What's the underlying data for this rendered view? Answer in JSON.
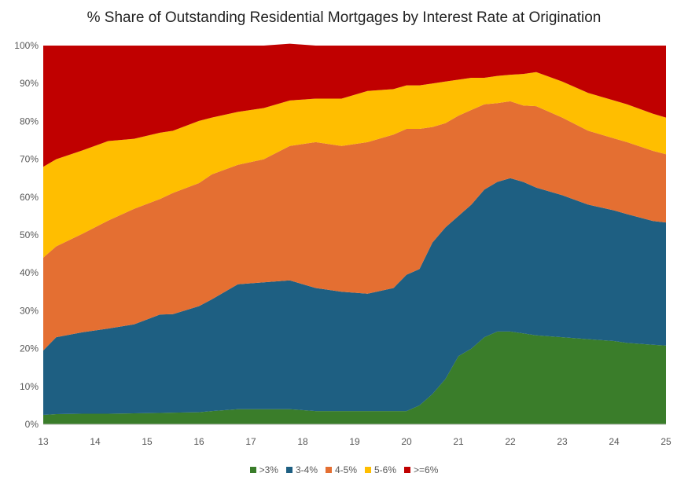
{
  "chart_data": {
    "type": "area",
    "stacked": true,
    "title": "% Share of Outstanding Residential Mortgages by Interest Rate at Origination",
    "xlabel": "",
    "ylabel": "",
    "xlim": [
      13,
      25
    ],
    "ylim": [
      0,
      100
    ],
    "x_ticks": [
      "13",
      "14",
      "15",
      "16",
      "17",
      "18",
      "19",
      "20",
      "21",
      "22",
      "23",
      "24",
      "25"
    ],
    "y_ticks": [
      "0%",
      "10%",
      "20%",
      "30%",
      "40%",
      "50%",
      "60%",
      "70%",
      "80%",
      "90%",
      "100%"
    ],
    "legend_position": "bottom",
    "grid": false,
    "x": [
      13,
      13.25,
      13.75,
      14.25,
      14.75,
      15.25,
      15.5,
      16,
      16.25,
      16.75,
      17.25,
      17.75,
      18.25,
      18.75,
      19.25,
      19.75,
      20,
      20.25,
      20.5,
      20.75,
      21,
      21.25,
      21.5,
      21.75,
      22,
      22.25,
      22.5,
      23,
      23.5,
      24,
      24.25,
      24.75,
      25
    ],
    "series": [
      {
        "name": ">3%",
        "color": "#3a7d2a",
        "values": [
          2.5,
          2.7,
          2.8,
          2.8,
          2.9,
          3,
          3.1,
          3.2,
          3.5,
          4,
          4,
          4,
          3.5,
          3.5,
          3.5,
          3.5,
          3.5,
          5,
          8,
          12,
          18,
          20,
          23,
          24.5,
          24.5,
          24,
          23.5,
          23,
          22.5,
          22,
          21.5,
          21,
          20.8
        ]
      },
      {
        "name": "3-4%",
        "color": "#1e5f82",
        "values": [
          17,
          20.3,
          21.5,
          22.5,
          23.5,
          26,
          26,
          28,
          29.5,
          33,
          33.5,
          34,
          32.5,
          31.5,
          31,
          32.5,
          36,
          36,
          40,
          40,
          37,
          38,
          39,
          39.5,
          40.5,
          40,
          39,
          37.5,
          35.5,
          34.5,
          34,
          32.7,
          32.5
        ]
      },
      {
        "name": "4-5%",
        "color": "#e46f32",
        "values": [
          24.5,
          24,
          26,
          28.5,
          30.5,
          30.5,
          32,
          32.5,
          33,
          31.5,
          32.5,
          35.5,
          38.5,
          38.5,
          40,
          40.5,
          38.5,
          37,
          30.5,
          27.5,
          26.5,
          25,
          22.5,
          20.8,
          20.3,
          20.2,
          21.5,
          20.5,
          19.5,
          19,
          19,
          18.5,
          18
        ]
      },
      {
        "name": "5-6%",
        "color": "#ffbe00",
        "values": [
          24,
          23,
          22,
          21,
          18.5,
          17.5,
          16.4,
          16.4,
          15,
          14,
          13.5,
          12,
          11.5,
          12.5,
          13.5,
          12,
          11.5,
          11.5,
          11.5,
          11,
          9.5,
          8.5,
          7,
          7.2,
          7,
          8.3,
          9,
          9.5,
          10,
          10,
          10,
          9.8,
          9.7
        ]
      },
      {
        "name": ">=6%",
        "color": "#c00000",
        "values": [
          32,
          30,
          27.7,
          25.2,
          24.6,
          23,
          22.5,
          19.9,
          19,
          17.5,
          16.5,
          15,
          14,
          14,
          12,
          11.5,
          10.5,
          10.5,
          10,
          9.5,
          9,
          8.5,
          8.5,
          8,
          7.7,
          7.5,
          7,
          9.5,
          12.5,
          14.5,
          15.5,
          18,
          19
        ]
      }
    ]
  }
}
